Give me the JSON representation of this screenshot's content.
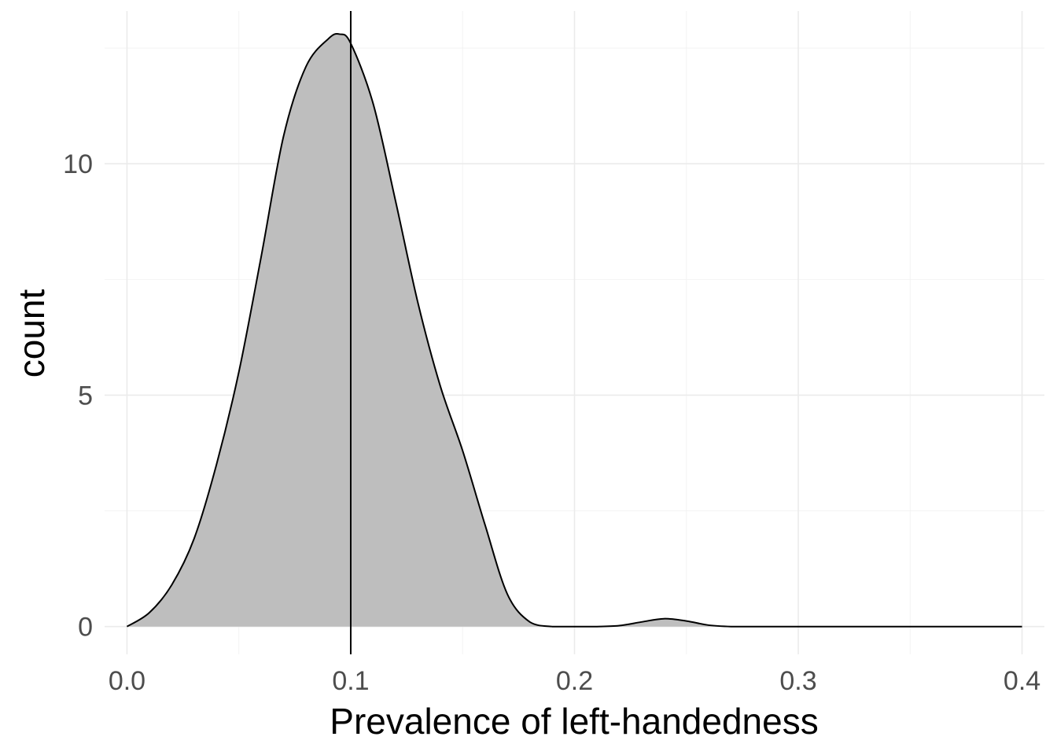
{
  "chart_data": {
    "type": "area",
    "subtype": "density",
    "title": "",
    "xlabel": "Prevalence of left-handedness",
    "ylabel": "count",
    "xlim": [
      -0.01,
      0.41
    ],
    "ylim": [
      -0.6,
      13.3
    ],
    "x_ticks": [
      0.0,
      0.1,
      0.2,
      0.3,
      0.4
    ],
    "x_tick_labels": [
      "0.0",
      "0.1",
      "0.2",
      "0.3",
      "0.4"
    ],
    "y_ticks": [
      0,
      5,
      10
    ],
    "y_tick_labels": [
      "0",
      "5",
      "10"
    ],
    "grid": true,
    "legend": "none",
    "fill_color": "#bebebe",
    "line_color": "#000000",
    "reference_line": {
      "orientation": "vertical",
      "x": 0.1,
      "color": "#000000"
    },
    "series": [
      {
        "x": [
          0.0,
          0.01,
          0.02,
          0.03,
          0.04,
          0.05,
          0.06,
          0.07,
          0.08,
          0.09,
          0.095,
          0.1,
          0.11,
          0.12,
          0.13,
          0.14,
          0.15,
          0.16,
          0.17,
          0.18,
          0.19,
          0.2,
          0.21,
          0.22,
          0.23,
          0.24,
          0.25,
          0.26,
          0.27,
          0.28,
          0.3,
          0.35,
          0.4
        ],
        "y": [
          0.0,
          0.3,
          0.9,
          1.9,
          3.5,
          5.5,
          8.0,
          10.6,
          12.1,
          12.7,
          12.8,
          12.6,
          11.3,
          9.2,
          7.0,
          5.2,
          3.8,
          2.2,
          0.7,
          0.1,
          0.0,
          0.0,
          0.0,
          0.02,
          0.1,
          0.17,
          0.12,
          0.03,
          0.0,
          0.0,
          0.0,
          0.0,
          0.0
        ]
      }
    ]
  }
}
